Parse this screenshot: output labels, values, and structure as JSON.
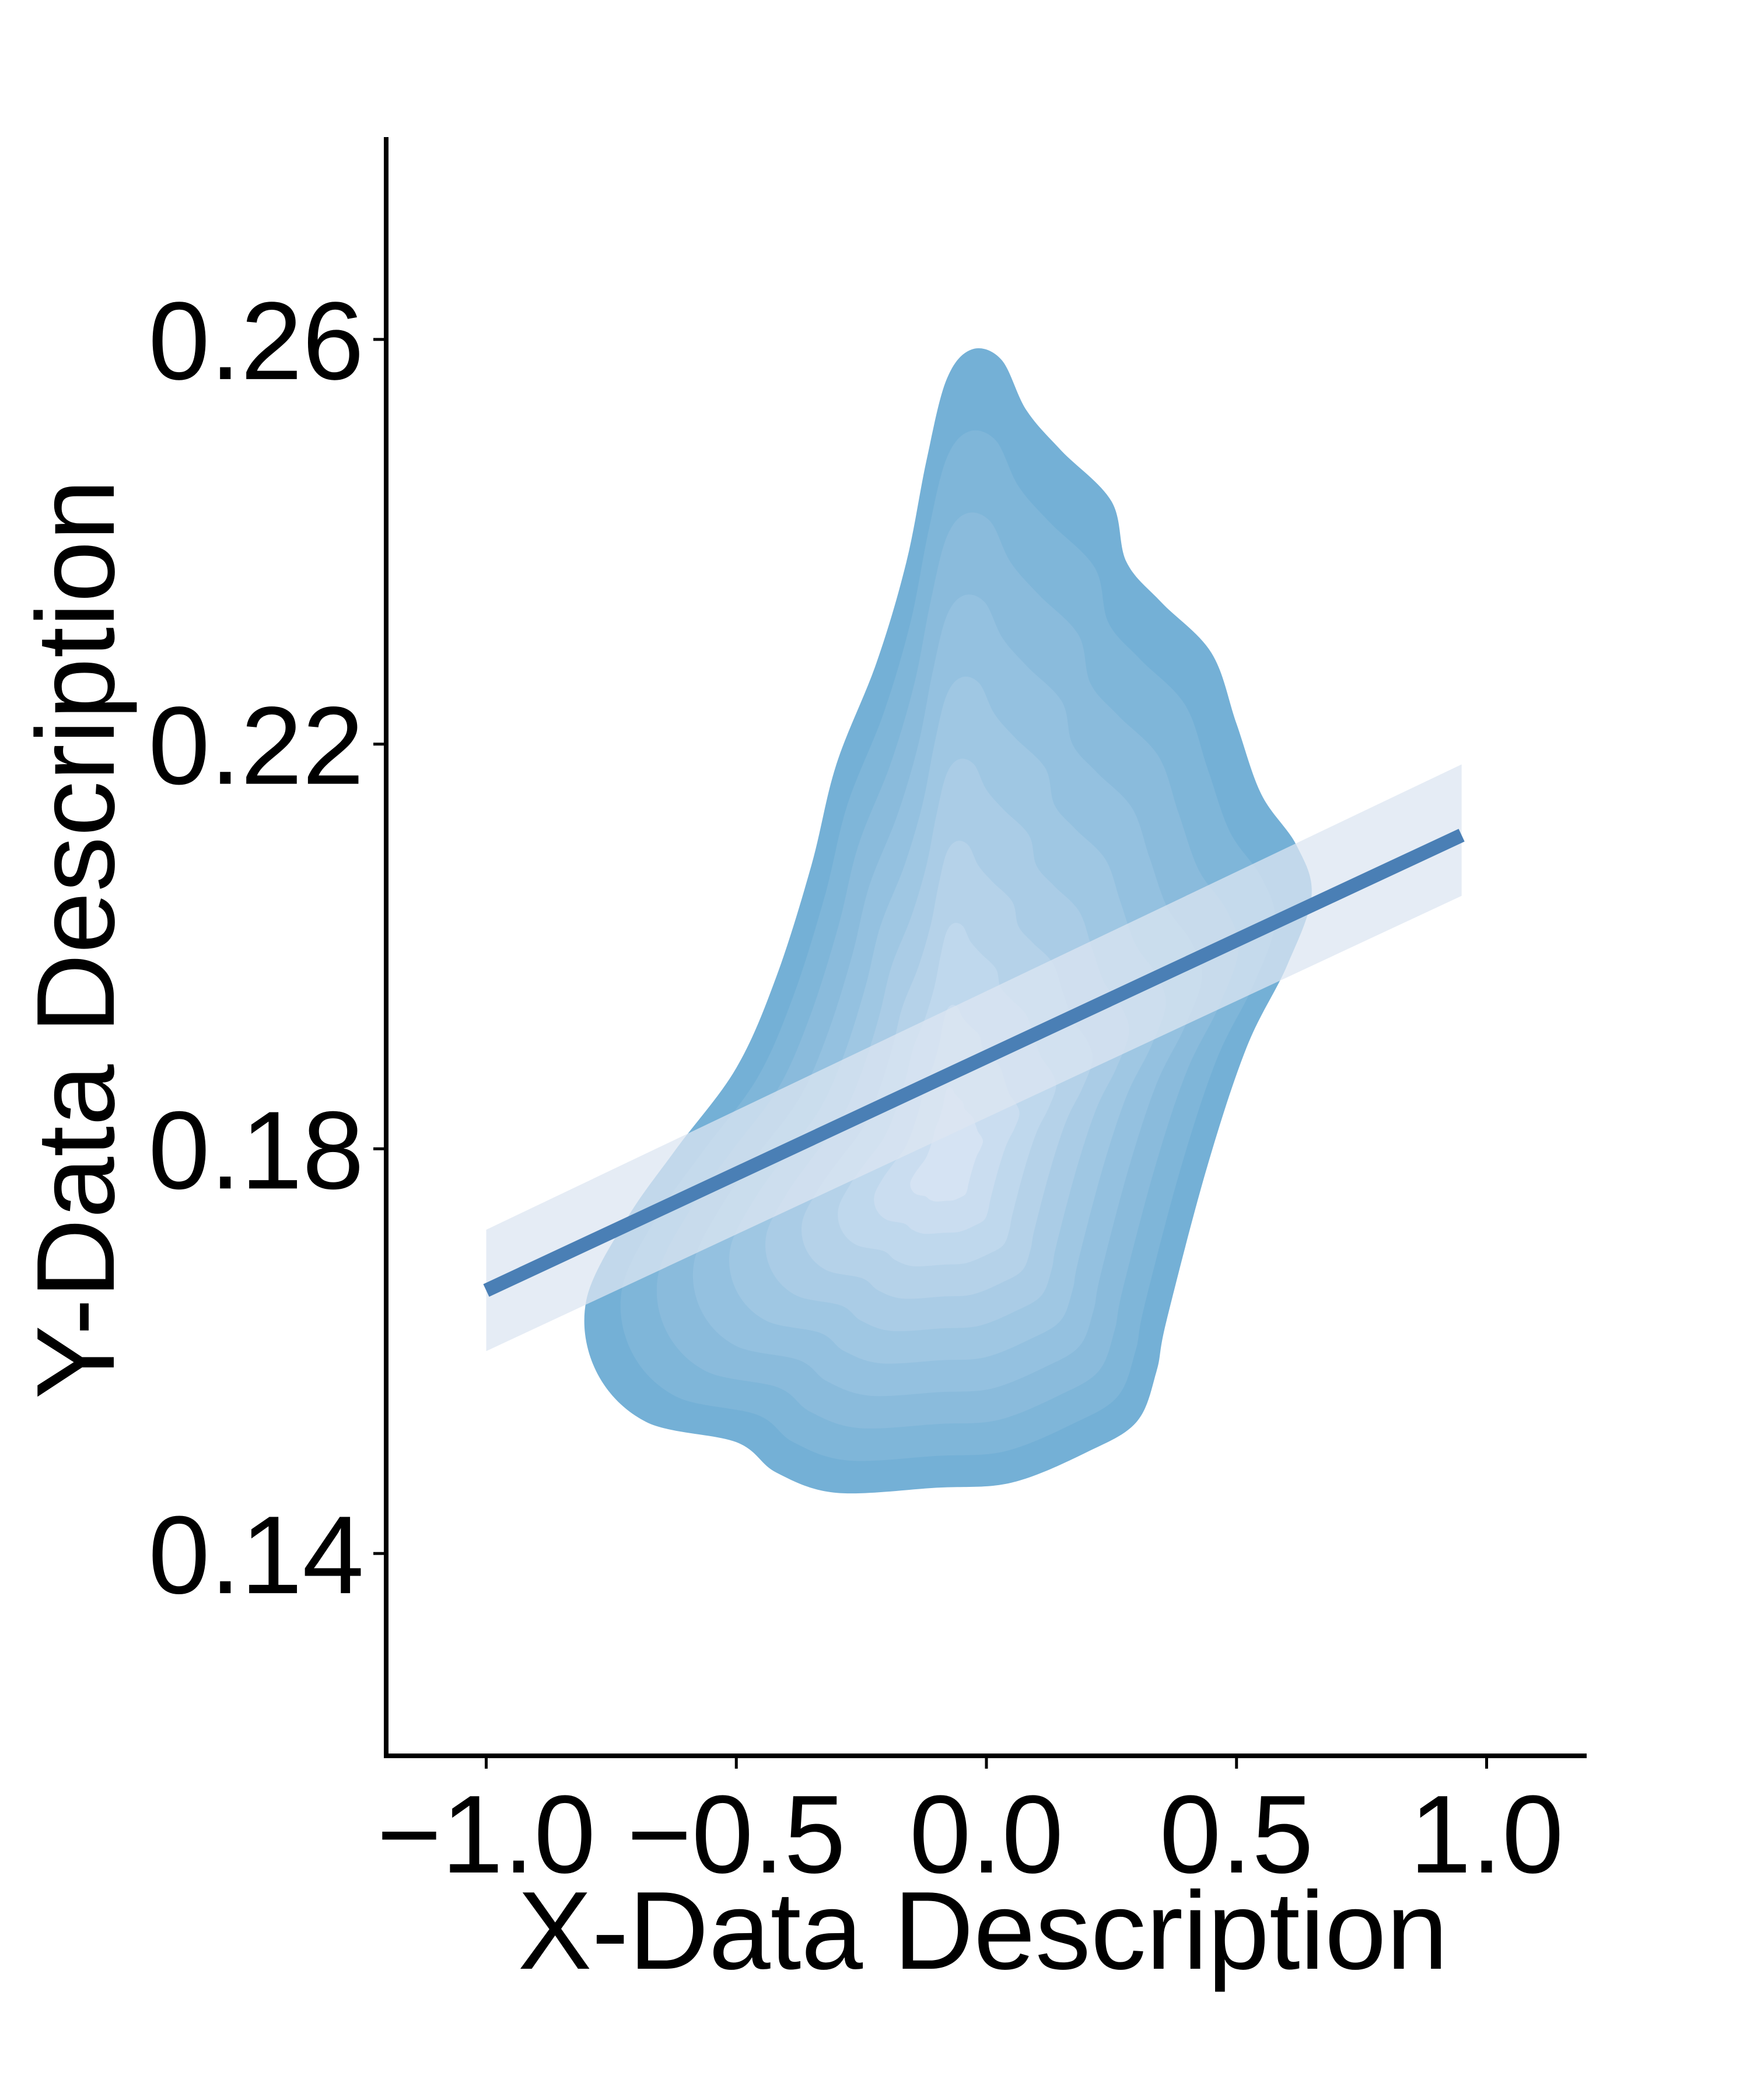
{
  "chart_data": {
    "type": "scatter",
    "title": "",
    "xlabel": "X-Data Description",
    "ylabel": "Y-Data Description",
    "xlim": [
      -1.2,
      1.2
    ],
    "ylim": [
      0.12,
      0.28
    ],
    "x_ticks": [
      -1.0,
      -0.5,
      0.0,
      0.5,
      1.0
    ],
    "x_tick_labels": [
      "−1.0",
      "−0.5",
      "0.0",
      "0.5",
      "1.0"
    ],
    "y_ticks": [
      0.14,
      0.18,
      0.22,
      0.26
    ],
    "y_tick_labels": [
      "0.14",
      "0.18",
      "0.22",
      "0.26"
    ],
    "grid": false,
    "legend": "none",
    "kde": {
      "levels": 10,
      "color_outer": "#74b0d6",
      "color_inner": "#d5e3f3",
      "outer_contour": [
        [
          -0.8,
          0.165
        ],
        [
          -0.78,
          0.158
        ],
        [
          -0.68,
          0.153
        ],
        [
          -0.5,
          0.151
        ],
        [
          -0.42,
          0.148
        ],
        [
          -0.3,
          0.146
        ],
        [
          -0.1,
          0.1465
        ],
        [
          0.05,
          0.147
        ],
        [
          0.2,
          0.15
        ],
        [
          0.3,
          0.153
        ],
        [
          0.34,
          0.158
        ],
        [
          0.36,
          0.163
        ],
        [
          0.44,
          0.178
        ],
        [
          0.52,
          0.19
        ],
        [
          0.6,
          0.198
        ],
        [
          0.65,
          0.205
        ],
        [
          0.62,
          0.21
        ],
        [
          0.55,
          0.215
        ],
        [
          0.5,
          0.222
        ],
        [
          0.45,
          0.229
        ],
        [
          0.35,
          0.234
        ],
        [
          0.28,
          0.238
        ],
        [
          0.25,
          0.244
        ],
        [
          0.15,
          0.249
        ],
        [
          0.08,
          0.253
        ],
        [
          0.03,
          0.258
        ],
        [
          -0.03,
          0.259
        ],
        [
          -0.08,
          0.256
        ],
        [
          -0.12,
          0.248
        ],
        [
          -0.16,
          0.238
        ],
        [
          -0.22,
          0.228
        ],
        [
          -0.3,
          0.218
        ],
        [
          -0.35,
          0.208
        ],
        [
          -0.42,
          0.197
        ],
        [
          -0.5,
          0.188
        ],
        [
          -0.62,
          0.18
        ],
        [
          -0.72,
          0.173
        ]
      ],
      "density_peak": [
        -0.08,
        0.178
      ]
    },
    "regression": {
      "x": [
        -1.0,
        0.95
      ],
      "y": [
        0.166,
        0.211
      ],
      "ci_lower": [
        0.16,
        0.205
      ],
      "ci_upper": [
        0.172,
        0.218
      ],
      "line_color": "#4a7fb5",
      "ci_color": "#dce6f1"
    }
  }
}
